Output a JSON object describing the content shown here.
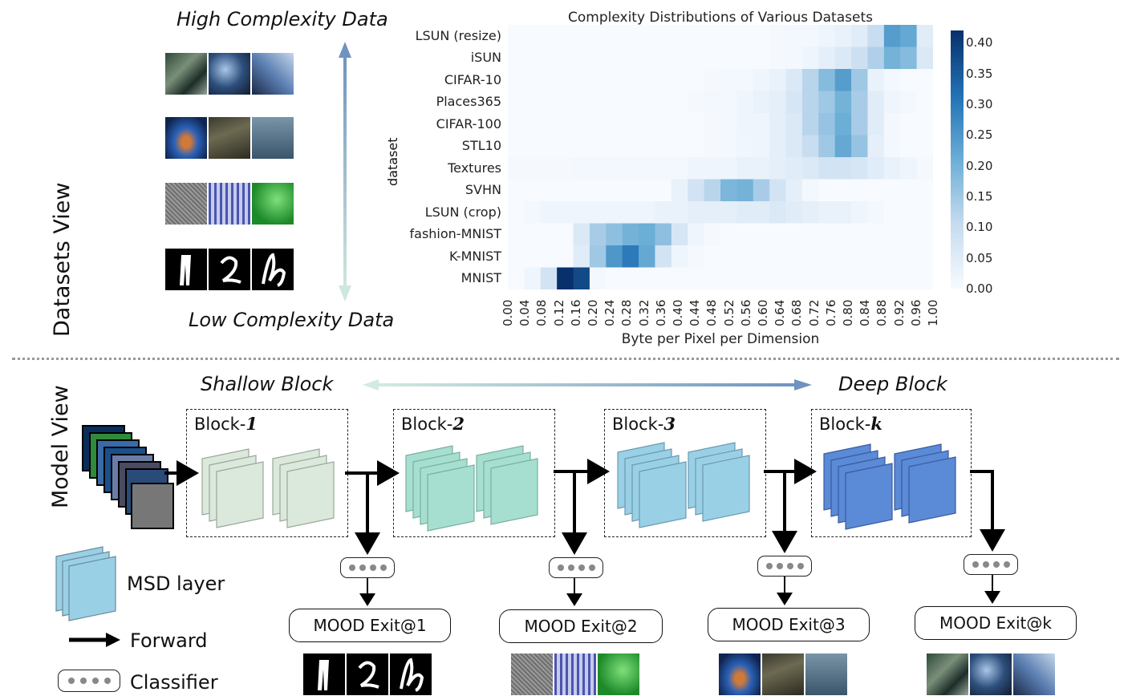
{
  "datasets_view": {
    "side_label": "Datasets View",
    "high_label": "High Complexity Data",
    "low_label": "Low Complexity Data"
  },
  "model_view": {
    "side_label": "Model View",
    "shallow_label": "Shallow Block",
    "deep_label": "Deep Block",
    "blocks": [
      {
        "prefix": "Block-",
        "index": "1"
      },
      {
        "prefix": "Block-",
        "index": "2"
      },
      {
        "prefix": "Block-",
        "index": "3"
      },
      {
        "prefix": "Block-",
        "index": "k"
      }
    ],
    "exits": [
      "MOOD Exit@1",
      "MOOD Exit@2",
      "MOOD Exit@3",
      "MOOD Exit@k"
    ],
    "legend": {
      "msd": "MSD layer",
      "forward": "Forward",
      "classifier": "Classifier"
    },
    "block_colors": [
      "#dbe8dc",
      "#a6dfd0",
      "#9ad0e6",
      "#5b8ad6"
    ]
  },
  "chart_data": {
    "type": "heatmap",
    "title": "Complexity Distributions of Various Datasets",
    "xlabel": "Byte per Pixel per Dimension",
    "ylabel": "dataset",
    "x_ticks": [
      "0.00",
      "0.04",
      "0.08",
      "0.12",
      "0.16",
      "0.20",
      "0.24",
      "0.28",
      "0.32",
      "0.36",
      "0.40",
      "0.44",
      "0.48",
      "0.52",
      "0.56",
      "0.60",
      "0.64",
      "0.68",
      "0.72",
      "0.76",
      "0.80",
      "0.84",
      "0.88",
      "0.92",
      "0.96",
      "1.00"
    ],
    "y_labels": [
      "LSUN (resize)",
      "iSUN",
      "CIFAR-10",
      "Places365",
      "CIFAR-100",
      "STL10",
      "Textures",
      "SVHN",
      "LSUN (crop)",
      "fashion-MNIST",
      "K-MNIST",
      "MNIST"
    ],
    "colorbar_ticks": [
      "0.40",
      "0.35",
      "0.30",
      "0.25",
      "0.20",
      "0.15",
      "0.10",
      "0.05",
      "0.00"
    ],
    "vmin": 0,
    "vmax": 0.42,
    "values": [
      [
        0,
        0,
        0,
        0,
        0,
        0,
        0,
        0,
        0,
        0,
        0,
        0,
        0,
        0,
        0,
        0,
        0.005,
        0.01,
        0.01,
        0.02,
        0.03,
        0.05,
        0.1,
        0.24,
        0.22,
        0.05
      ],
      [
        0,
        0,
        0,
        0,
        0,
        0,
        0,
        0,
        0,
        0,
        0,
        0,
        0,
        0,
        0,
        0,
        0.005,
        0.01,
        0.02,
        0.04,
        0.06,
        0.09,
        0.13,
        0.2,
        0.18,
        0.06
      ],
      [
        0,
        0,
        0,
        0,
        0,
        0,
        0,
        0,
        0,
        0,
        0,
        0,
        0.005,
        0.01,
        0.01,
        0.02,
        0.03,
        0.06,
        0.12,
        0.18,
        0.24,
        0.15,
        0.03,
        0.01,
        0,
        0
      ],
      [
        0,
        0,
        0,
        0,
        0,
        0,
        0,
        0,
        0,
        0,
        0,
        0.005,
        0.01,
        0.01,
        0.02,
        0.03,
        0.04,
        0.07,
        0.12,
        0.15,
        0.2,
        0.14,
        0.05,
        0.02,
        0.01,
        0
      ],
      [
        0,
        0,
        0,
        0,
        0,
        0,
        0,
        0,
        0,
        0,
        0,
        0,
        0.005,
        0.01,
        0.02,
        0.02,
        0.04,
        0.06,
        0.12,
        0.16,
        0.21,
        0.14,
        0.05,
        0.01,
        0,
        0
      ],
      [
        0,
        0,
        0,
        0,
        0,
        0,
        0,
        0,
        0,
        0,
        0,
        0,
        0.005,
        0.01,
        0.015,
        0.02,
        0.04,
        0.06,
        0.1,
        0.15,
        0.22,
        0.16,
        0.04,
        0.01,
        0,
        0
      ],
      [
        0.005,
        0.005,
        0.005,
        0.005,
        0.01,
        0.01,
        0.01,
        0.01,
        0.01,
        0.01,
        0.01,
        0.02,
        0.02,
        0.02,
        0.03,
        0.03,
        0.04,
        0.05,
        0.06,
        0.08,
        0.08,
        0.07,
        0.05,
        0.03,
        0.02,
        0.005
      ],
      [
        0,
        0,
        0,
        0,
        0,
        0,
        0,
        0,
        0,
        0,
        0.03,
        0.08,
        0.12,
        0.19,
        0.2,
        0.14,
        0.08,
        0.04,
        0.01,
        0,
        0,
        0,
        0,
        0,
        0,
        0
      ],
      [
        0,
        0.01,
        0.02,
        0.02,
        0.02,
        0.02,
        0.02,
        0.02,
        0.02,
        0.03,
        0.03,
        0.04,
        0.04,
        0.04,
        0.05,
        0.05,
        0.06,
        0.05,
        0.04,
        0.03,
        0.03,
        0.02,
        0.01,
        0,
        0,
        0
      ],
      [
        0,
        0,
        0,
        0,
        0.06,
        0.14,
        0.17,
        0.2,
        0.21,
        0.17,
        0.07,
        0.02,
        0.005,
        0,
        0,
        0,
        0,
        0,
        0,
        0,
        0,
        0,
        0,
        0,
        0,
        0
      ],
      [
        0,
        0,
        0,
        0,
        0.05,
        0.15,
        0.25,
        0.3,
        0.22,
        0.08,
        0.02,
        0.005,
        0,
        0,
        0,
        0,
        0,
        0,
        0,
        0,
        0,
        0,
        0,
        0,
        0,
        0
      ],
      [
        0,
        0.02,
        0.08,
        0.42,
        0.38,
        0.01,
        0,
        0,
        0,
        0,
        0,
        0,
        0,
        0,
        0,
        0,
        0,
        0,
        0,
        0,
        0,
        0,
        0,
        0,
        0,
        0
      ]
    ]
  }
}
